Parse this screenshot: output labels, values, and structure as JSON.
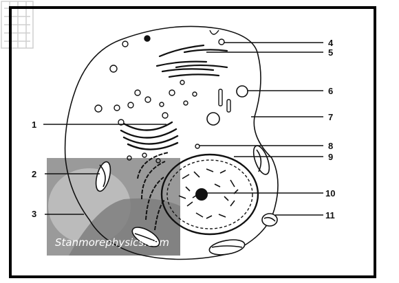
{
  "diagram": {
    "labels": [
      {
        "id": "1",
        "text": "1"
      },
      {
        "id": "2",
        "text": "2"
      },
      {
        "id": "3",
        "text": "3"
      },
      {
        "id": "4",
        "text": "4"
      },
      {
        "id": "5",
        "text": "5"
      },
      {
        "id": "6",
        "text": "6"
      },
      {
        "id": "7",
        "text": "7"
      },
      {
        "id": "8",
        "text": "8"
      },
      {
        "id": "9",
        "text": "9"
      },
      {
        "id": "10",
        "text": "10"
      },
      {
        "id": "11",
        "text": "11"
      }
    ],
    "watermark": "Stanmorephysics.com",
    "colors": {
      "ink": "#111111",
      "frame": "#000000",
      "overlay": "#8a8a8a"
    }
  }
}
